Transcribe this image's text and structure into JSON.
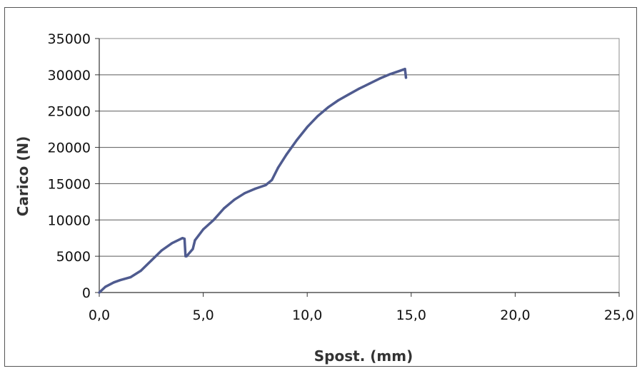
{
  "chart_data": {
    "type": "line",
    "xlabel": "Spost. (mm)",
    "ylabel": "Carico (N)",
    "xlim": [
      0,
      25
    ],
    "ylim": [
      0,
      35000
    ],
    "xticks": [
      0,
      5,
      10,
      15,
      20,
      25
    ],
    "xtick_labels": [
      "0,0",
      "5,0",
      "10,0",
      "15,0",
      "20,0",
      "25,0"
    ],
    "yticks": [
      0,
      5000,
      10000,
      15000,
      20000,
      25000,
      30000,
      35000
    ],
    "ytick_labels": [
      "0",
      "5000",
      "10000",
      "15000",
      "20000",
      "25000",
      "30000",
      "35000"
    ],
    "grid": "horizontal",
    "legend": "none",
    "plot_background": "#ffffff",
    "line_color": "#4f5b8f",
    "series": [
      {
        "x": [
          0.0,
          0.3,
          0.7,
          1.0,
          1.5,
          2.0,
          2.5,
          3.0,
          3.5,
          4.0,
          4.1,
          4.15,
          4.2,
          4.5,
          4.6,
          5.0,
          5.5,
          6.0,
          6.5,
          7.0,
          7.5,
          8.0,
          8.3,
          8.6,
          9.0,
          9.5,
          10.0,
          10.5,
          11.0,
          11.5,
          12.0,
          12.5,
          13.0,
          13.5,
          14.0,
          14.5,
          14.7,
          14.75
        ],
        "values": [
          0,
          800,
          1400,
          1700,
          2100,
          3000,
          4400,
          5800,
          6800,
          7500,
          7400,
          5000,
          5000,
          6000,
          7200,
          8700,
          10000,
          11600,
          12800,
          13700,
          14300,
          14800,
          15500,
          17200,
          19000,
          21000,
          22800,
          24300,
          25500,
          26500,
          27300,
          28100,
          28800,
          29500,
          30100,
          30600,
          30800,
          29600
        ]
      }
    ]
  }
}
